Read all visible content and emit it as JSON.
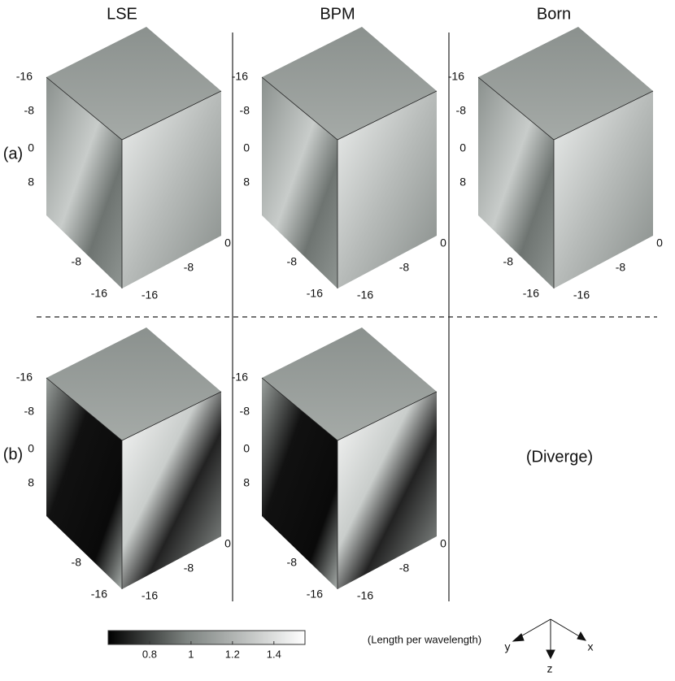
{
  "columns": [
    "LSE",
    "BPM",
    "Born"
  ],
  "rows": [
    "(a)",
    "(b)"
  ],
  "axis_ticks": {
    "left": [
      "-16",
      "-8",
      "0",
      "8"
    ],
    "front": [
      "-8",
      "-16"
    ],
    "right": [
      "0",
      "-8",
      "-16"
    ]
  },
  "diverge_note": "(Diverge)",
  "colorbar": {
    "label": "(Length per wavelength)",
    "range": [
      0.6,
      1.55
    ],
    "ticks": [
      0.8,
      1,
      1.2,
      1.4
    ]
  },
  "axes_icon": {
    "x": "x",
    "y": "y",
    "z": "z"
  }
}
